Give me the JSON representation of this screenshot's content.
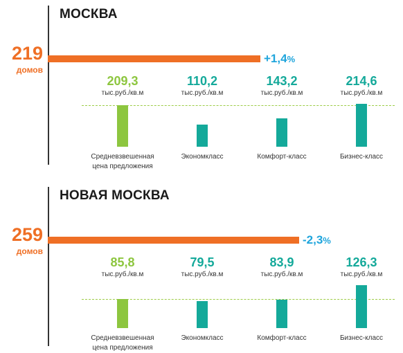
{
  "colors": {
    "accent_orange": "#ef6f25",
    "change_blue": "#1fa5dc",
    "avg_green": "#8dc63f",
    "class_teal": "#14a99a",
    "baseline_dash": "#9ccc45"
  },
  "chart_data": [
    {
      "type": "bar",
      "title": "МОСКВА",
      "count": "219",
      "count_label": "домов",
      "change": "+1,4",
      "change_pct": "%",
      "categories": [
        "Средневзвешенная цена предложения",
        "Экономкласс",
        "Комфорт-класс",
        "Бизнес-класс"
      ],
      "category_lines": [
        [
          "Средневзвешенная",
          "цена предложения"
        ],
        [
          "Экономкласс"
        ],
        [
          "Комфорт-класс"
        ],
        [
          "Бизнес-класс"
        ]
      ],
      "values": [
        209.3,
        110.2,
        143.2,
        214.6
      ],
      "value_labels": [
        "209,3",
        "110,2",
        "143,2",
        "214,6"
      ],
      "unit": "тыс.руб./кв.м",
      "reference_value": 209.3
    },
    {
      "type": "bar",
      "title": "НОВАЯ МОСКВА",
      "count": "259",
      "count_label": "домов",
      "change": "-2,3",
      "change_pct": "%",
      "categories": [
        "Средневзвешенная цена предложения",
        "Экономкласс",
        "Комфорт-класс",
        "Бизнес-класс"
      ],
      "category_lines": [
        [
          "Средневзвешенная",
          "цена предложения"
        ],
        [
          "Экономкласс"
        ],
        [
          "Комфорт-класс"
        ],
        [
          "Бизнес-класс"
        ]
      ],
      "values": [
        85.8,
        79.5,
        83.9,
        126.3
      ],
      "value_labels": [
        "85,8",
        "79,5",
        "83,9",
        "126,3"
      ],
      "unit": "тыс.руб./кв.м",
      "reference_value": 85.8
    }
  ]
}
